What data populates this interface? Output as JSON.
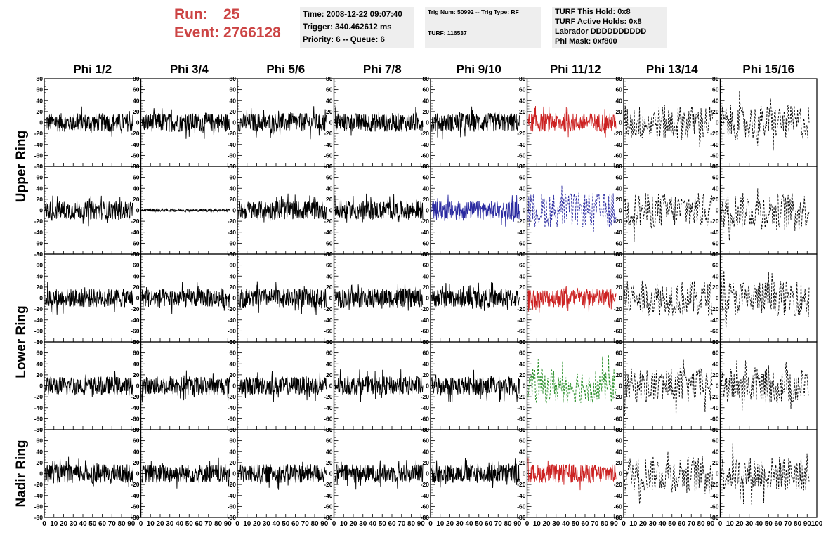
{
  "header": {
    "run_label": "Run:",
    "run_value": "25",
    "event_label": "Event:",
    "event_value": "2766128"
  },
  "info_boxes": {
    "time": "Time: 2008-12-22 09:07:40",
    "trigger": "Trigger: 340.462612 ms",
    "priority": "Priority: 6 -- Queue: 6",
    "trig_num": "Trig Num: 50992 -- Trig Type: RF",
    "turf": "TURF: 116537",
    "turf_hold": "TURF This Hold: 0x8",
    "turf_active": "TURF Active Holds: 0x8",
    "labrador": "Labrador DDDDDDDDDD",
    "phi_mask": "Phi Mask: 0xf800"
  },
  "chart_data": {
    "type": "line",
    "columns": [
      "Phi 1/2",
      "Phi 3/4",
      "Phi 5/6",
      "Phi 7/8",
      "Phi 9/10",
      "Phi 11/12",
      "Phi 13/14",
      "Phi 15/16"
    ],
    "ring_labels": [
      {
        "text": "Upper Ring",
        "rows": [
          0,
          1
        ]
      },
      {
        "text": "Lower Ring",
        "rows": [
          2,
          3
        ]
      },
      {
        "text": "Nadir Ring",
        "rows": [
          4
        ]
      }
    ],
    "xlim": [
      0,
      100
    ],
    "ylim": [
      -80,
      80
    ],
    "yticks": [
      -80,
      -60,
      -40,
      -20,
      0,
      20,
      40,
      60,
      80
    ],
    "xticks": [
      0,
      10,
      20,
      30,
      40,
      50,
      60,
      70,
      80,
      90,
      100
    ],
    "colors": {
      "default": "#000000",
      "red": "#cc2222",
      "blue": "#2a2aa0",
      "green": "#228b22"
    },
    "panels": [
      [
        "default",
        "default",
        "default",
        "default",
        "default",
        "red",
        "dashed",
        "dashed"
      ],
      [
        "default",
        "flat",
        "default",
        "default",
        "blue",
        "blue-dashed",
        "dashed",
        "dashed"
      ],
      [
        "default",
        "default",
        "default",
        "default",
        "default",
        "red",
        "dashed",
        "dashed"
      ],
      [
        "default",
        "default",
        "default",
        "default",
        "default",
        "green-dashed",
        "dashed",
        "dashed"
      ],
      [
        "default",
        "default",
        "default",
        "default",
        "default",
        "red",
        "dashed",
        "dashed"
      ]
    ]
  }
}
